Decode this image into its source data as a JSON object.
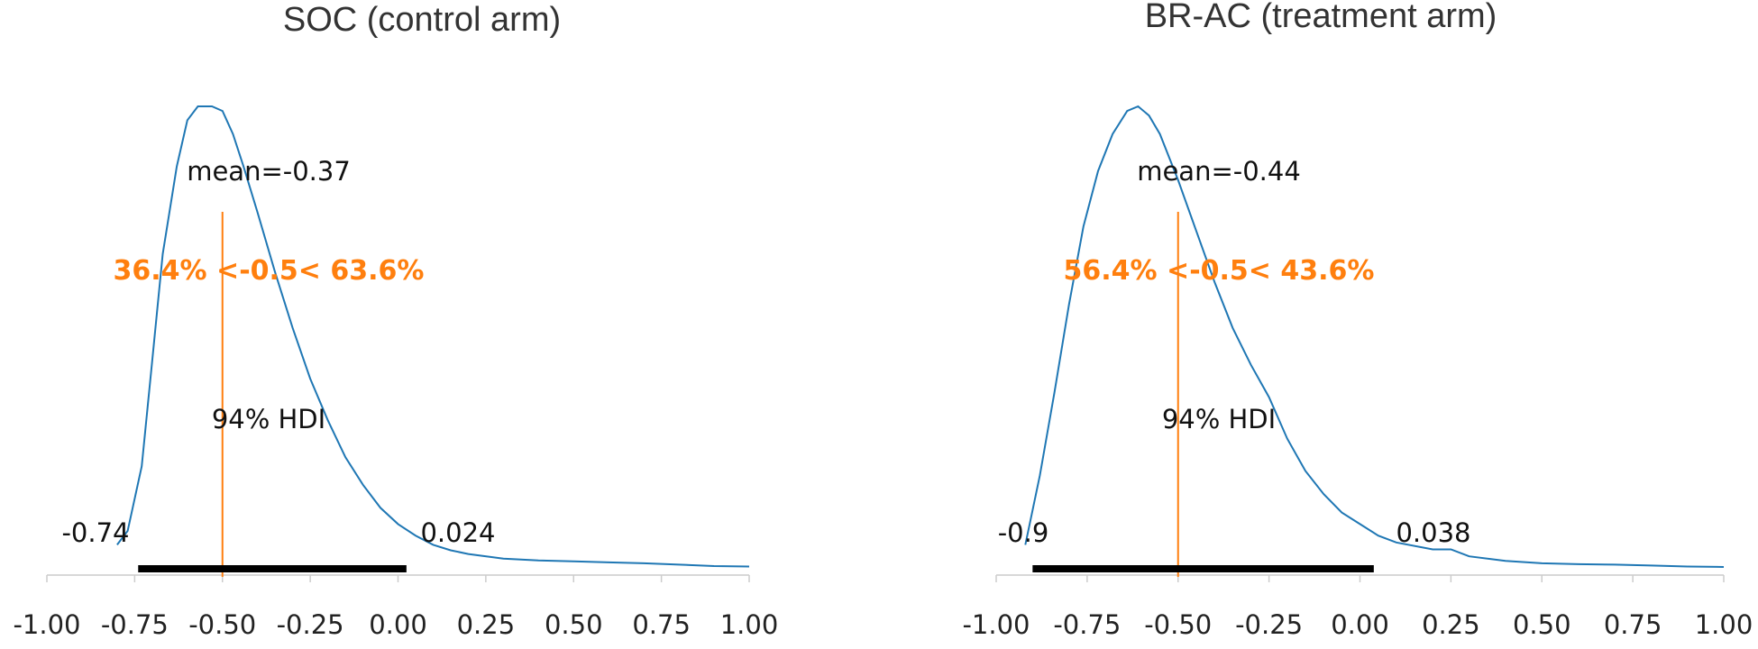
{
  "chart_data": [
    {
      "type": "density",
      "title": "SOC (control arm)",
      "xlim": [
        -1.0,
        1.0
      ],
      "x_ticks": [
        "-1.00",
        "-0.75",
        "-0.50",
        "-0.25",
        "0.00",
        "0.25",
        "0.50",
        "0.75",
        "1.00"
      ],
      "x_tick_values": [
        -1.0,
        -0.75,
        -0.5,
        -0.25,
        0.0,
        0.25,
        0.5,
        0.75,
        1.0
      ],
      "mean_label": "mean=-0.37",
      "mean": -0.37,
      "ref_value": -0.5,
      "ref_label": "36.4% <-0.5< 63.6%",
      "hdi_label": "94% HDI",
      "hdi": [
        -0.74,
        0.024
      ],
      "hdi_low_label": "-0.74",
      "hdi_high_label": "0.024",
      "curve_color": "#1f77b4",
      "ref_color": "#ff7f0e",
      "density": {
        "x": [
          -0.8,
          -0.77,
          -0.73,
          -0.7,
          -0.67,
          -0.63,
          -0.6,
          -0.57,
          -0.55,
          -0.53,
          -0.5,
          -0.47,
          -0.44,
          -0.4,
          -0.35,
          -0.3,
          -0.25,
          -0.2,
          -0.15,
          -0.1,
          -0.05,
          0.0,
          0.05,
          0.1,
          0.15,
          0.2,
          0.3,
          0.4,
          0.5,
          0.6,
          0.7,
          0.8,
          0.9,
          1.0
        ],
        "y": [
          0.05,
          0.08,
          0.22,
          0.45,
          0.68,
          0.87,
          0.97,
          1.0,
          1.0,
          1.0,
          0.99,
          0.94,
          0.87,
          0.77,
          0.64,
          0.52,
          0.41,
          0.32,
          0.24,
          0.18,
          0.13,
          0.095,
          0.07,
          0.05,
          0.038,
          0.03,
          0.02,
          0.016,
          0.014,
          0.012,
          0.01,
          0.007,
          0.004,
          0.003
        ]
      }
    },
    {
      "type": "density",
      "title": "BR-AC (treatment arm)",
      "xlim": [
        -1.0,
        1.0
      ],
      "x_ticks": [
        "-1.00",
        "-0.75",
        "-0.50",
        "-0.25",
        "0.00",
        "0.25",
        "0.50",
        "0.75",
        "1.00"
      ],
      "x_tick_values": [
        -1.0,
        -0.75,
        -0.5,
        -0.25,
        0.0,
        0.25,
        0.5,
        0.75,
        1.0
      ],
      "mean_label": "mean=-0.44",
      "mean": -0.44,
      "ref_value": -0.5,
      "ref_label": "56.4% <-0.5< 43.6%",
      "hdi_label": "94% HDI",
      "hdi": [
        -0.9,
        0.038
      ],
      "hdi_low_label": "-0.9",
      "hdi_high_label": "0.038",
      "curve_color": "#1f77b4",
      "ref_color": "#ff7f0e",
      "density": {
        "x": [
          -0.92,
          -0.88,
          -0.84,
          -0.8,
          -0.76,
          -0.72,
          -0.68,
          -0.64,
          -0.61,
          -0.58,
          -0.55,
          -0.5,
          -0.45,
          -0.4,
          -0.35,
          -0.3,
          -0.25,
          -0.2,
          -0.15,
          -0.1,
          -0.05,
          0.0,
          0.05,
          0.1,
          0.2,
          0.25,
          0.3,
          0.4,
          0.5,
          0.6,
          0.7,
          0.8,
          0.9,
          1.0
        ],
        "y": [
          0.05,
          0.2,
          0.38,
          0.57,
          0.74,
          0.86,
          0.94,
          0.99,
          1.0,
          0.98,
          0.94,
          0.84,
          0.73,
          0.62,
          0.52,
          0.44,
          0.37,
          0.28,
          0.21,
          0.16,
          0.12,
          0.095,
          0.07,
          0.055,
          0.04,
          0.04,
          0.025,
          0.015,
          0.01,
          0.008,
          0.007,
          0.005,
          0.003,
          0.002
        ]
      }
    }
  ]
}
